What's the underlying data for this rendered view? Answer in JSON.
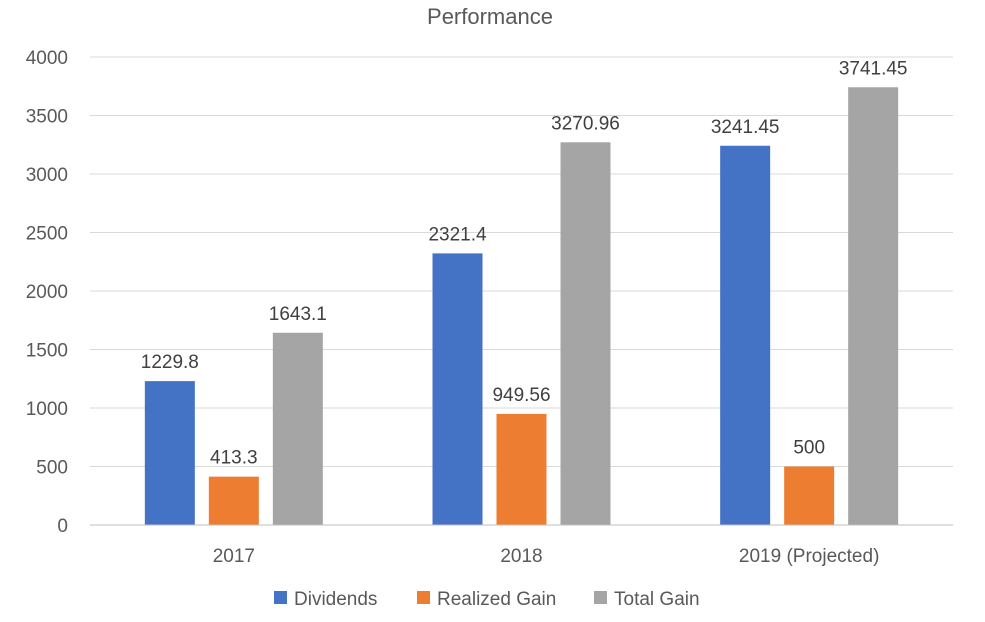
{
  "chart_data": {
    "type": "bar",
    "title": "Performance",
    "xlabel": "",
    "ylabel": "",
    "categories": [
      "2017",
      "2018",
      "2019 (Projected)"
    ],
    "series": [
      {
        "name": "Dividends",
        "values": [
          1229.8,
          2321.4,
          3241.45
        ],
        "labels": [
          "1229.8",
          "2321.4",
          "3241.45"
        ],
        "color": "#4472C4"
      },
      {
        "name": "Realized Gain",
        "values": [
          413.3,
          949.56,
          500
        ],
        "labels": [
          "413.3",
          "949.56",
          "500"
        ],
        "color": "#ED7D31"
      },
      {
        "name": "Total Gain",
        "values": [
          1643.1,
          3270.96,
          3741.45
        ],
        "labels": [
          "1643.1",
          "3270.96",
          "3741.45"
        ],
        "color": "#A5A5A5"
      }
    ],
    "ylim": [
      0,
      4000
    ],
    "yticks": [
      "0",
      "500",
      "1000",
      "1500",
      "2000",
      "2500",
      "3000",
      "3500",
      "4000"
    ],
    "grid": true,
    "legend_position": "bottom"
  }
}
